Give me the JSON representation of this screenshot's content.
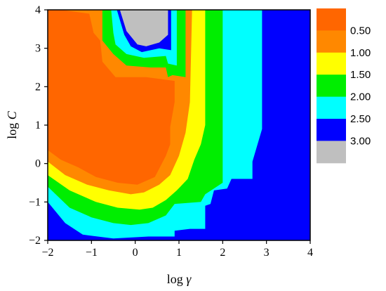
{
  "chart_data": {
    "type": "contour",
    "xlabel": "log γ",
    "xlabel_parts": {
      "name": "log",
      "var": "γ"
    },
    "ylabel": "log C",
    "ylabel_parts": {
      "name": "log",
      "var": "C"
    },
    "xlim": [
      -2,
      4
    ],
    "ylim": [
      -2,
      4
    ],
    "x_ticks": [
      -2,
      -1,
      0,
      1,
      2,
      3,
      4
    ],
    "y_ticks": [
      -2,
      -1,
      0,
      1,
      2,
      3,
      4
    ],
    "x_tick_labels": [
      "−2",
      "−1",
      "0",
      "1",
      "2",
      "3",
      "4"
    ],
    "y_tick_labels": [
      "−2",
      "−1",
      "0",
      "1",
      "2",
      "3",
      "4"
    ],
    "grid": false,
    "legend_position": "right",
    "levels": [
      {
        "label": "",
        "color": "#ff6600"
      },
      {
        "label": "0.50",
        "color": "#ff8800"
      },
      {
        "label": "1.00",
        "color": "#ffff00"
      },
      {
        "label": "1.50",
        "color": "#00ee00"
      },
      {
        "label": "2.00",
        "color": "#00ffff"
      },
      {
        "label": "2.50",
        "color": "#0000ff"
      },
      {
        "label": "3.00",
        "color": "#bfbfbf"
      }
    ],
    "regions": [
      {
        "level": 5,
        "points": [
          [
            -2,
            -2
          ],
          [
            4,
            -2
          ],
          [
            4,
            4
          ],
          [
            -2,
            4
          ]
        ]
      },
      {
        "level": 4,
        "points": [
          [
            -2,
            -1
          ],
          [
            -2,
            4
          ],
          [
            2.9,
            4
          ],
          [
            2.9,
            0.9
          ],
          [
            2.68,
            0.05
          ],
          [
            2.68,
            -0.4
          ],
          [
            2.2,
            -0.4
          ],
          [
            2.1,
            -0.65
          ],
          [
            1.8,
            -0.7
          ],
          [
            1.72,
            -1.05
          ],
          [
            1.6,
            -1.1
          ],
          [
            1.6,
            -1.7
          ],
          [
            1.25,
            -1.7
          ],
          [
            0.9,
            -1.75
          ],
          [
            0.9,
            -1.9
          ],
          [
            0.3,
            -1.9
          ],
          [
            -0.5,
            -1.95
          ],
          [
            -1.2,
            -1.85
          ],
          [
            -1.6,
            -1.55
          ]
        ]
      },
      {
        "level": 3,
        "points": [
          [
            -2,
            -0.6
          ],
          [
            -2,
            4
          ],
          [
            2,
            4
          ],
          [
            2,
            -0.5
          ],
          [
            1.6,
            -0.8
          ],
          [
            1.5,
            -1.0
          ],
          [
            0.9,
            -1.05
          ],
          [
            0.7,
            -1.35
          ],
          [
            0.3,
            -1.55
          ],
          [
            -0.1,
            -1.6
          ],
          [
            -0.5,
            -1.55
          ],
          [
            -1.0,
            -1.4
          ],
          [
            -1.5,
            -1.15
          ]
        ]
      },
      {
        "level": 2,
        "points": [
          [
            -2,
            -0.3
          ],
          [
            -2,
            4
          ],
          [
            1.6,
            4
          ],
          [
            1.6,
            1.0
          ],
          [
            1.5,
            0.5
          ],
          [
            1.35,
            0.1
          ],
          [
            1.2,
            -0.4
          ],
          [
            0.95,
            -0.7
          ],
          [
            0.7,
            -0.95
          ],
          [
            0.4,
            -1.15
          ],
          [
            0.1,
            -1.2
          ],
          [
            -0.4,
            -1.15
          ],
          [
            -0.9,
            -1.0
          ],
          [
            -1.5,
            -0.7
          ]
        ]
      },
      {
        "level": 1,
        "points": [
          [
            -2,
            0.05
          ],
          [
            -2,
            4
          ],
          [
            1.6,
            4
          ],
          [
            1.3,
            4
          ],
          [
            1.25,
            1.6
          ],
          [
            1.15,
            0.8
          ],
          [
            1.0,
            0.2
          ],
          [
            0.8,
            -0.3
          ],
          [
            0.55,
            -0.55
          ],
          [
            0.2,
            -0.75
          ],
          [
            -0.1,
            -0.8
          ],
          [
            -0.6,
            -0.7
          ],
          [
            -1.1,
            -0.55
          ],
          [
            -1.6,
            -0.3
          ]
        ]
      },
      {
        "level": 0,
        "points": [
          [
            -2,
            0.35
          ],
          [
            -2,
            4
          ],
          [
            -1.7,
            4
          ],
          [
            -1.05,
            3.9
          ],
          [
            -0.95,
            3.4
          ],
          [
            -0.8,
            3.2
          ],
          [
            -0.75,
            2.65
          ],
          [
            -0.45,
            2.25
          ],
          [
            0.25,
            2.25
          ],
          [
            0.9,
            2.15
          ],
          [
            0.9,
            1.6
          ],
          [
            0.8,
            0.95
          ],
          [
            0.8,
            0.5
          ],
          [
            0.7,
            0.2
          ],
          [
            0.45,
            -0.35
          ],
          [
            0.05,
            -0.55
          ],
          [
            -0.4,
            -0.5
          ],
          [
            -0.9,
            -0.35
          ],
          [
            -1.3,
            -0.1
          ],
          [
            -1.7,
            0.1
          ]
        ]
      },
      {
        "level": 3,
        "points": [
          [
            -0.75,
            4
          ],
          [
            1.15,
            4
          ],
          [
            1.15,
            2.25
          ],
          [
            0.85,
            2.3
          ],
          [
            0.75,
            2.25
          ],
          [
            0.7,
            2.5
          ],
          [
            0.35,
            2.5
          ],
          [
            -0.2,
            2.55
          ],
          [
            -0.5,
            2.85
          ],
          [
            -0.75,
            3.2
          ]
        ]
      },
      {
        "level": 4,
        "points": [
          [
            -0.55,
            4
          ],
          [
            0.95,
            4
          ],
          [
            0.95,
            2.55
          ],
          [
            0.75,
            2.6
          ],
          [
            0.7,
            2.8
          ],
          [
            0.2,
            2.75
          ],
          [
            -0.2,
            2.85
          ],
          [
            -0.45,
            3.1
          ],
          [
            -0.5,
            3.4
          ]
        ]
      },
      {
        "level": 5,
        "points": [
          [
            -0.42,
            4
          ],
          [
            0.82,
            4
          ],
          [
            0.82,
            2.95
          ],
          [
            0.55,
            3.0
          ],
          [
            0.15,
            2.9
          ],
          [
            -0.1,
            3.05
          ],
          [
            -0.25,
            3.35
          ]
        ]
      },
      {
        "level": 6,
        "points": [
          [
            -0.35,
            4
          ],
          [
            0.75,
            4
          ],
          [
            0.75,
            3.35
          ],
          [
            0.55,
            3.15
          ],
          [
            0.25,
            3.05
          ],
          [
            0.05,
            3.1
          ],
          [
            -0.2,
            3.45
          ]
        ]
      }
    ]
  }
}
